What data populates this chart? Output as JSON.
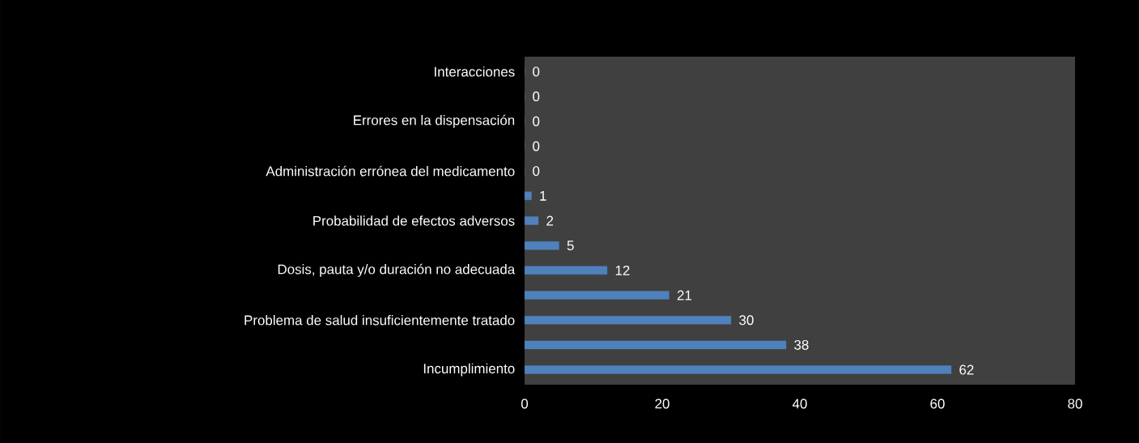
{
  "chart_data": {
    "type": "bar",
    "orientation": "horizontal",
    "categories": [
      "Interacciones",
      null,
      "Errores en la dispensación",
      null,
      "Administración errónea del medicamento",
      null,
      "Probabilidad de efectos adversos",
      null,
      "Dosis, pauta y/o duración no adecuada",
      null,
      "Problema de salud insuficientemente tratado",
      null,
      "Incumplimiento"
    ],
    "values": [
      0,
      0,
      0,
      0,
      0,
      1,
      2,
      5,
      12,
      21,
      30,
      38,
      62
    ],
    "color": "#4f81bd",
    "xlim": [
      0,
      80
    ],
    "xticks": [
      0,
      20,
      40,
      60,
      80
    ],
    "data_labels": true,
    "grid": false
  }
}
